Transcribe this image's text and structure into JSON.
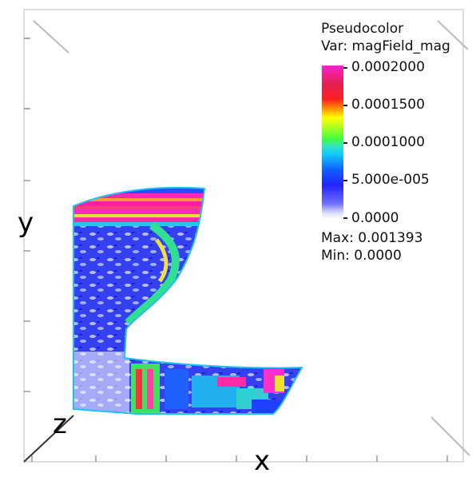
{
  "legend": {
    "title": "Pseudocolor",
    "var_line": "Var: magField_mag",
    "max_line": "Max: 0.001393",
    "min_line": "Min: 0.0000",
    "ticks": [
      "0.0002000",
      "0.0001500",
      "0.0001000",
      "5.000e-005",
      "0.0000"
    ]
  },
  "axes": {
    "x_label": "x",
    "y_label": "y",
    "z_label": "z"
  },
  "colors": {
    "background": "#ffffff",
    "field_base": "#2a2aff",
    "field_high": "#ff2aa8"
  }
}
